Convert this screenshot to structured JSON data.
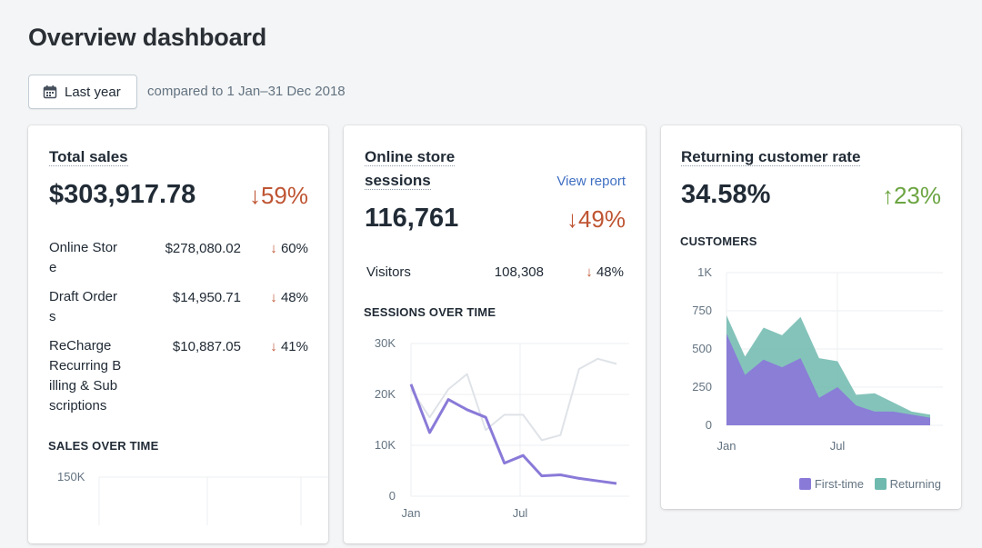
{
  "header": {
    "title": "Overview dashboard",
    "date_button_label": "Last year",
    "compare_text": "compared to 1 Jan–31 Dec 2018"
  },
  "total_sales": {
    "title": "Total sales",
    "value": "$303,917.78",
    "change": "59%",
    "change_dir": "down",
    "rows": [
      {
        "name_lines": [
          "Online Stor",
          "e"
        ],
        "amount": "$278,080.02",
        "change": "60%"
      },
      {
        "name_lines": [
          "Draft Order",
          "s"
        ],
        "amount": "$14,950.71",
        "change": "48%"
      },
      {
        "name_lines": [
          "ReCharge",
          "Recurring B",
          "illing & Sub",
          "scriptions"
        ],
        "amount": "$10,887.05",
        "change": "41%"
      }
    ],
    "chart_title": "SALES OVER TIME",
    "chart_top_tick": "150K"
  },
  "sessions": {
    "title_lines": [
      "Online store",
      "sessions"
    ],
    "view_report": "View report",
    "value": "116,761",
    "change": "49%",
    "visitors_label": "Visitors",
    "visitors_value": "108,308",
    "visitors_change": "48%",
    "chart_title": "SESSIONS OVER TIME"
  },
  "returning": {
    "title": "Returning customer rate",
    "value": "34.58%",
    "change": "23%",
    "customers_label": "CUSTOMERS",
    "legend": [
      "First-time",
      "Returning"
    ]
  },
  "colors": {
    "down": "#bf5533",
    "up": "#6ca542",
    "first_time": "#8a7ad8",
    "returning": "#6fb9ae",
    "sessions_line": "#8a7ad8",
    "sessions_prev": "#dfe3e8"
  },
  "icons": {
    "date_button": "calendar-icon",
    "down": "arrow-down-icon",
    "up": "arrow-up-icon"
  },
  "chart_data": [
    {
      "type": "line",
      "title": "SESSIONS OVER TIME",
      "ylim": [
        0,
        30000
      ],
      "y_ticks": [
        "0",
        "10K",
        "20K",
        "30K"
      ],
      "x_labels": [
        "Jan",
        "Jul"
      ],
      "series": [
        {
          "values": [
            22000,
            12500,
            19000,
            17000,
            15500,
            6500,
            8000,
            4000,
            4200,
            3500,
            3000,
            2500
          ]
        },
        {
          "values": [
            21000,
            15500,
            21000,
            24000,
            13000,
            16000,
            16000,
            11000,
            12000,
            25000,
            27000,
            26000
          ]
        }
      ]
    },
    {
      "type": "area",
      "title": "CUSTOMERS",
      "ylim": [
        0,
        1000
      ],
      "y_ticks": [
        "0",
        "250",
        "500",
        "750",
        "1K"
      ],
      "x_labels": [
        "Jan",
        "Jul"
      ],
      "series": [
        {
          "name": "First-time",
          "values": [
            600,
            330,
            430,
            380,
            440,
            180,
            250,
            130,
            90,
            90,
            70,
            50
          ]
        },
        {
          "name": "Returning",
          "values": [
            720,
            450,
            640,
            590,
            710,
            440,
            420,
            200,
            210,
            150,
            90,
            70
          ]
        }
      ]
    }
  ]
}
